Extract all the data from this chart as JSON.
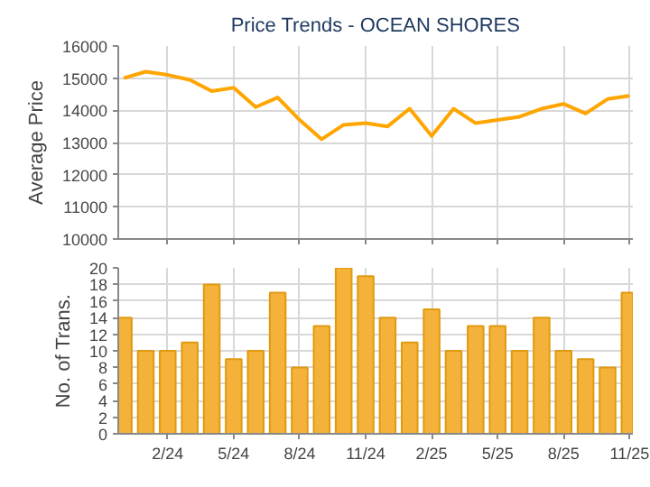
{
  "chart_data": [
    {
      "type": "line",
      "title": "Price Trends - OCEAN SHORES",
      "ylabel": "Average Price",
      "categories": [
        null,
        null,
        null,
        null,
        null,
        null,
        null,
        null,
        null,
        null,
        null,
        null,
        null,
        null,
        null,
        null,
        null,
        null,
        null,
        null,
        null,
        null,
        null,
        null
      ],
      "series": [
        {
          "color": "#ffa500",
          "values": [
            15000,
            15200,
            15100,
            14950,
            14600,
            14700,
            14100,
            14400,
            13700,
            13100,
            13550,
            13600,
            13500,
            14050,
            13200,
            14050,
            13600,
            13700,
            13800,
            14050,
            14200,
            13900,
            14350,
            14450
          ]
        }
      ],
      "ylim": [
        10000,
        16000
      ],
      "yticks": [
        10000,
        11000,
        12000,
        13000,
        14000,
        15000,
        16000
      ],
      "grid": true,
      "tick_labels": "y",
      "marker": "none"
    },
    {
      "type": "bar",
      "ylabel": "No. of Trans.",
      "categories": [
        null,
        null,
        "2/24",
        null,
        null,
        "5/24",
        null,
        null,
        "8/24",
        null,
        null,
        "11/24",
        null,
        null,
        "2/25",
        null,
        null,
        "5/25",
        null,
        null,
        "8/25",
        null,
        null,
        "11/25"
      ],
      "series": [
        {
          "color": "#f4b23a",
          "values": [
            14,
            10,
            10,
            11,
            18,
            9,
            10,
            17,
            8,
            13,
            20,
            19,
            14,
            11,
            15,
            10,
            13,
            13,
            10,
            14,
            10,
            9,
            8,
            17
          ]
        }
      ],
      "ylim": [
        0,
        20
      ],
      "yticks": [
        0,
        2,
        4,
        6,
        8,
        10,
        12,
        14,
        16,
        18,
        20
      ],
      "grid": true
    }
  ]
}
